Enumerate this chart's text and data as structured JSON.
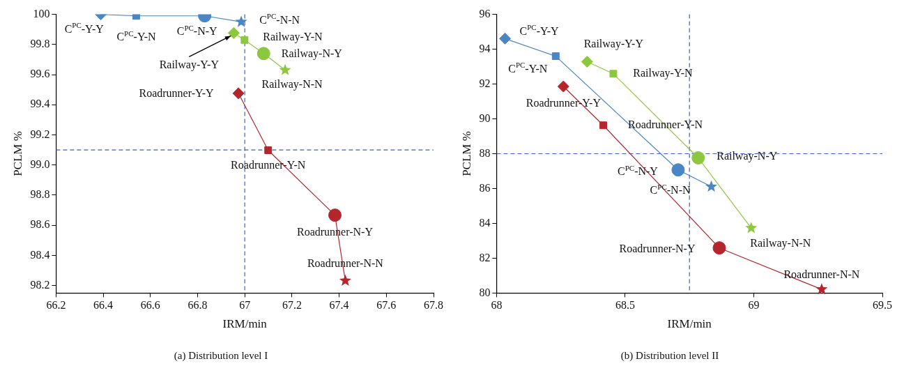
{
  "chart_data": [
    {
      "type": "line",
      "title": "(a) Distribution level I",
      "xlabel": "IRM/min",
      "ylabel": "PCLM %",
      "xlim": [
        66.2,
        67.8
      ],
      "xticks": [
        66.2,
        66.4,
        66.6,
        66.8,
        67,
        67.2,
        67.4,
        67.6,
        67.8
      ],
      "ylim": [
        98.15,
        100
      ],
      "yticks": [
        98.2,
        98.4,
        98.6,
        98.8,
        {
          "value": 99,
          "label": "99.0"
        },
        99.2,
        99.4,
        99.6,
        99.8,
        100
      ],
      "grid": false,
      "legend": false,
      "series": [
        {
          "color": "#4a86c5",
          "x": [
            66.39,
            66.54,
            66.83,
            66.985
          ],
          "values": [
            100.0,
            99.99,
            99.99,
            99.95
          ],
          "marker": "none"
        },
        {
          "color": "#8dc63f",
          "x": [
            66.953,
            66.999,
            67.08,
            67.171
          ],
          "values": [
            99.876,
            99.83,
            99.74,
            99.63
          ],
          "marker": "none"
        },
        {
          "color": "#b5262c",
          "x": [
            66.973,
            67.099,
            67.382,
            67.426
          ],
          "values": [
            99.476,
            99.098,
            98.667,
            98.232
          ],
          "marker": "none"
        },
        {
          "type": "scatter",
          "marker": "diamond",
          "x": [
            66.39,
            66.953,
            66.973
          ],
          "values": [
            100.0,
            99.876,
            99.476
          ],
          "colors": [
            "#4a86c5",
            "#8dc63f",
            "#b5262c"
          ]
        },
        {
          "type": "scatter",
          "marker": "square",
          "x": [
            66.54,
            66.999,
            67.099
          ],
          "values": [
            99.99,
            99.83,
            99.098
          ],
          "colors": [
            "#4a86c5",
            "#8dc63f",
            "#b5262c"
          ]
        },
        {
          "type": "scatter",
          "marker": "circle",
          "x": [
            66.83,
            67.08,
            67.382
          ],
          "values": [
            99.99,
            99.74,
            98.667
          ],
          "colors": [
            "#4a86c5",
            "#8dc63f",
            "#b5262c"
          ]
        },
        {
          "type": "scatter",
          "marker": "star",
          "x": [
            66.985,
            67.171,
            67.426
          ],
          "values": [
            99.95,
            99.63,
            98.232
          ],
          "colors": [
            "#4a86c5",
            "#8dc63f",
            "#b5262c"
          ]
        }
      ],
      "ref_lines": [
        {
          "axis": "x",
          "value": 67,
          "color": "#3c5fc8",
          "line_style": "dashed"
        },
        {
          "axis": "y",
          "value": 99.1,
          "color": "#3c5fc8",
          "line_style": "dashed"
        }
      ],
      "annotations": [
        {
          "text": "C$^{PC}$-Y-Y",
          "x": 66.39,
          "y": 100.0
        },
        {
          "text": "C$^{PC}$-Y-N",
          "x": 66.54,
          "y": 99.99
        },
        {
          "text": "C$^{PC}$-N-Y",
          "x": 66.83,
          "y": 99.99
        },
        {
          "text": "C$^{PC}$-N-N",
          "x": 66.985,
          "y": 99.95
        },
        {
          "text": "Railway-Y-Y",
          "x": 66.953,
          "y": 99.876
        },
        {
          "text": "Railway-Y-N",
          "x": 66.999,
          "y": 99.83
        },
        {
          "text": "Railway-N-Y",
          "x": 67.08,
          "y": 99.74
        },
        {
          "text": "Railway-N-N",
          "x": 67.171,
          "y": 99.63
        },
        {
          "text": "Roadrunner-Y-Y",
          "x": 66.973,
          "y": 99.476
        },
        {
          "text": "Roadrunner-Y-N",
          "x": 67.099,
          "y": 99.098
        },
        {
          "text": "Roadrunner-N-Y",
          "x": 67.382,
          "y": 98.667
        },
        {
          "text": "Roadrunner-N-N",
          "x": 67.426,
          "y": 98.232
        }
      ]
    },
    {
      "type": "line",
      "title": "(b) Distribution level II",
      "xlabel": "IRM/min",
      "ylabel": "PCLM %",
      "xlim": [
        68,
        69.5
      ],
      "xticks": [
        68,
        68.5,
        69,
        69.5
      ],
      "ylim": [
        80,
        96
      ],
      "yticks": [
        80,
        82,
        84,
        86,
        88,
        90,
        92,
        94,
        96
      ],
      "grid": false,
      "legend": false,
      "series": [
        {
          "color": "#4a86c5",
          "x": [
            68.033,
            68.23,
            68.706,
            68.835
          ],
          "values": [
            94.61,
            93.6,
            87.07,
            86.11
          ],
          "marker": "none"
        },
        {
          "color": "#8dc63f",
          "x": [
            68.352,
            68.454,
            68.784,
            68.99
          ],
          "values": [
            93.28,
            92.59,
            87.76,
            83.73
          ],
          "marker": "none"
        },
        {
          "color": "#b5262c",
          "x": [
            68.26,
            68.415,
            68.866,
            69.264
          ],
          "values": [
            91.86,
            89.63,
            82.59,
            80.21
          ],
          "marker": "none"
        },
        {
          "type": "scatter",
          "marker": "diamond",
          "x": [
            68.033,
            68.352,
            68.26
          ],
          "values": [
            94.61,
            93.28,
            91.86
          ],
          "colors": [
            "#4a86c5",
            "#8dc63f",
            "#b5262c"
          ]
        },
        {
          "type": "scatter",
          "marker": "square",
          "x": [
            68.23,
            68.454,
            68.415
          ],
          "values": [
            93.6,
            92.59,
            89.63
          ],
          "colors": [
            "#4a86c5",
            "#8dc63f",
            "#b5262c"
          ]
        },
        {
          "type": "scatter",
          "marker": "circle",
          "x": [
            68.706,
            68.784,
            68.866
          ],
          "values": [
            87.07,
            87.76,
            82.59
          ],
          "colors": [
            "#4a86c5",
            "#8dc63f",
            "#b5262c"
          ]
        },
        {
          "type": "scatter",
          "marker": "star",
          "x": [
            68.835,
            68.99,
            69.264
          ],
          "values": [
            86.11,
            83.73,
            80.21
          ],
          "colors": [
            "#4a86c5",
            "#8dc63f",
            "#b5262c"
          ]
        }
      ],
      "ref_lines": [
        {
          "axis": "x",
          "value": 68.75,
          "color": "#3c5fc8",
          "line_style": "dashed"
        },
        {
          "axis": "y",
          "value": 88,
          "color": "#3c5fc8",
          "line_style": "dashed"
        }
      ],
      "annotations": [
        {
          "text": "C$^{PC}$-Y-Y",
          "x": 68.033,
          "y": 94.61
        },
        {
          "text": "C$^{PC}$-Y-N",
          "x": 68.23,
          "y": 93.6
        },
        {
          "text": "C$^{PC}$-N-Y",
          "x": 68.706,
          "y": 87.07
        },
        {
          "text": "C$^{PC}$-N-N",
          "x": 68.835,
          "y": 86.11
        },
        {
          "text": "Railway-Y-Y",
          "x": 68.352,
          "y": 93.28
        },
        {
          "text": "Railway-Y-N",
          "x": 68.454,
          "y": 92.59
        },
        {
          "text": "Railway-N-Y",
          "x": 68.784,
          "y": 87.76
        },
        {
          "text": "Railway-N-N",
          "x": 68.99,
          "y": 83.73
        },
        {
          "text": "Roadrunner-Y-Y",
          "x": 68.26,
          "y": 91.86
        },
        {
          "text": "Roadrunner-Y-N",
          "x": 68.415,
          "y": 89.63
        },
        {
          "text": "Roadrunner-N-Y",
          "x": 68.866,
          "y": 82.59
        },
        {
          "text": "Roadrunner-N-N",
          "x": 69.264,
          "y": 80.21
        }
      ]
    }
  ]
}
